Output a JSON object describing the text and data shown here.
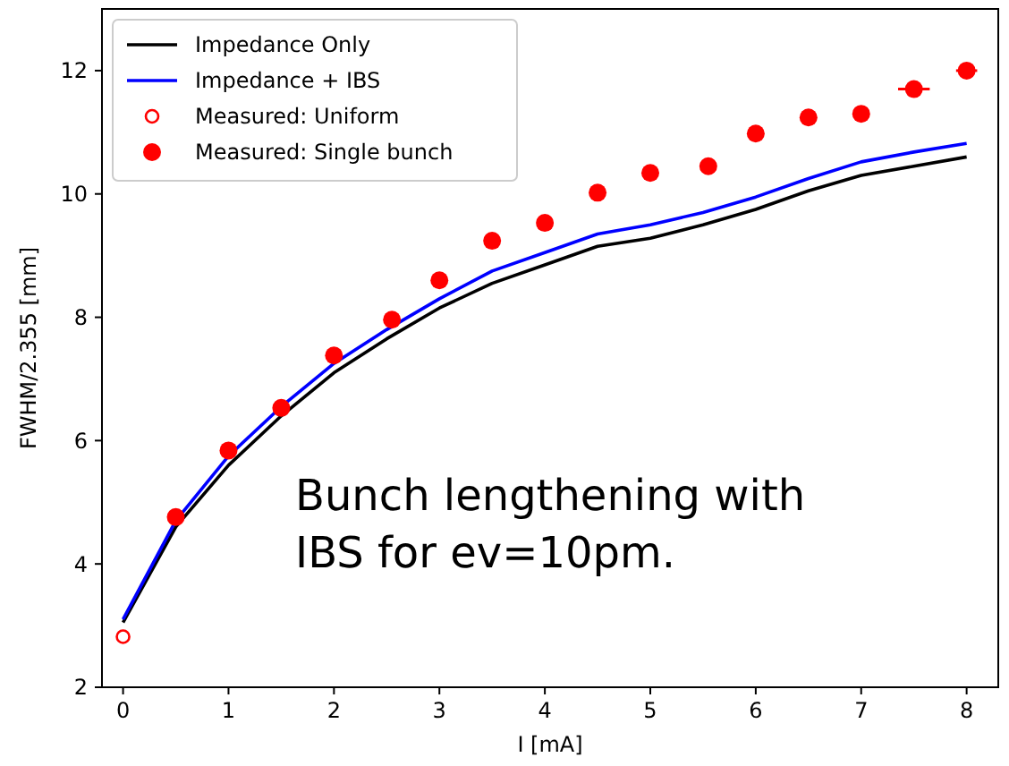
{
  "chart_data": {
    "type": "line",
    "xlabel": "I [mA]",
    "ylabel": "FWHM/2.355 [mm]",
    "xlim": [
      -0.2,
      8.3
    ],
    "ylim": [
      2,
      13
    ],
    "xticks": [
      0,
      1,
      2,
      3,
      4,
      5,
      6,
      7,
      8
    ],
    "yticks": [
      2,
      4,
      6,
      8,
      10,
      12
    ],
    "grid": false,
    "legend": "top left",
    "annotations": [
      "Bunch lengthening with\nIBS for ev=10pm."
    ],
    "series": [
      {
        "name": "Impedance Only",
        "color": "#000000",
        "x": [
          0,
          0.5,
          1,
          1.5,
          2,
          2.5,
          3,
          3.5,
          4,
          4.5,
          5,
          5.5,
          6,
          6.5,
          7,
          7.5,
          8
        ],
        "values": [
          3.05,
          4.6,
          5.6,
          6.4,
          7.1,
          7.65,
          8.15,
          8.55,
          8.85,
          9.15,
          9.28,
          9.5,
          9.75,
          10.05,
          10.3,
          10.45,
          10.6
        ]
      },
      {
        "name": "Impedance + IBS",
        "color": "#0000ff",
        "x": [
          0,
          0.5,
          1,
          1.5,
          2,
          2.5,
          3,
          3.5,
          4,
          4.5,
          5,
          5.5,
          6,
          6.5,
          7,
          7.5,
          8
        ],
        "values": [
          3.1,
          4.7,
          5.75,
          6.55,
          7.25,
          7.8,
          8.3,
          8.75,
          9.05,
          9.35,
          9.5,
          9.7,
          9.95,
          10.25,
          10.52,
          10.68,
          10.82
        ]
      },
      {
        "name": "Measured: Uniform",
        "type": "scatter",
        "color": "#ff0000",
        "marker": "open-circle",
        "x": [
          0
        ],
        "values": [
          2.82
        ]
      },
      {
        "name": "Measured: Single bunch",
        "type": "scatter",
        "color": "#ff0000",
        "marker": "circle",
        "x": [
          0.5,
          1,
          1.5,
          2,
          2.55,
          3,
          3.5,
          4,
          4.5,
          5,
          5.55,
          6,
          6.5,
          7,
          7.5,
          8
        ],
        "values": [
          4.76,
          5.84,
          6.53,
          7.38,
          7.96,
          8.6,
          9.24,
          9.53,
          10.02,
          10.34,
          10.45,
          10.98,
          11.24,
          11.3,
          11.7,
          12.0
        ],
        "xerrors": [
          null,
          null,
          null,
          null,
          null,
          null,
          null,
          null,
          null,
          null,
          null,
          null,
          null,
          null,
          0.15,
          0.1
        ]
      }
    ]
  }
}
